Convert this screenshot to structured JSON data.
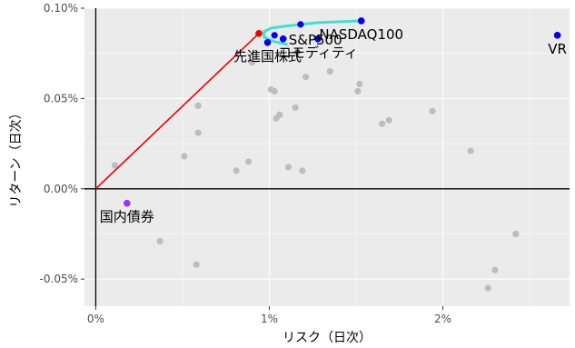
{
  "chart_data": {
    "type": "scatter",
    "xlabel": "リスク（日次）",
    "ylabel": "リターン（日次）",
    "xlim": [
      -0.00065,
      0.0273
    ],
    "ylim": [
      -0.00065,
      0.001
    ],
    "x_ticks": [
      {
        "value": 0.0,
        "label": "0%"
      },
      {
        "value": 0.01,
        "label": "1%"
      },
      {
        "value": 0.02,
        "label": "2%"
      }
    ],
    "y_ticks": [
      {
        "value": -0.0005,
        "label": "-0.05%"
      },
      {
        "value": 0.0,
        "label": "0.00%"
      },
      {
        "value": 0.0005,
        "label": "0.05%"
      },
      {
        "value": 0.001,
        "label": "0.10%"
      }
    ],
    "grid": true,
    "legend": "none",
    "colors": {
      "panel": "#ebebeb",
      "grid": "#ffffff",
      "background_points": "#bdbdbd",
      "highlight_points": "#0000ee",
      "bond_point": "#9b30ff",
      "tangent_point": "#ee0000",
      "tangent_line": "#ee0000",
      "frontier": "#40e0d0",
      "axes": "#000000"
    },
    "background_points": [
      [
        0.0011,
        0.00013
      ],
      [
        0.0037,
        -0.00029
      ],
      [
        0.0051,
        0.00018
      ],
      [
        0.0058,
        -0.00042
      ],
      [
        0.0059,
        0.00031
      ],
      [
        0.0059,
        0.00046
      ],
      [
        0.0081,
        0.0001
      ],
      [
        0.0088,
        0.00015
      ],
      [
        0.009,
        0.0007
      ],
      [
        0.0101,
        0.00055
      ],
      [
        0.0103,
        0.00054
      ],
      [
        0.0104,
        0.00039
      ],
      [
        0.0106,
        0.00041
      ],
      [
        0.0111,
        0.00012
      ],
      [
        0.0115,
        0.00045
      ],
      [
        0.0119,
        0.0001
      ],
      [
        0.0121,
        0.00062
      ],
      [
        0.0135,
        0.00065
      ],
      [
        0.0151,
        0.00054
      ],
      [
        0.0152,
        0.00058
      ],
      [
        0.0165,
        0.00036
      ],
      [
        0.0169,
        0.00038
      ],
      [
        0.0194,
        0.00043
      ],
      [
        0.0216,
        0.00021
      ],
      [
        0.0226,
        -0.00055
      ],
      [
        0.023,
        -0.00045
      ],
      [
        0.0242,
        -0.00025
      ]
    ],
    "frontier": [
      [
        0.0097,
        0.00084
      ],
      [
        0.0097,
        0.00087
      ],
      [
        0.0101,
        0.00089
      ],
      [
        0.0109,
        0.0009
      ],
      [
        0.0118,
        0.00091
      ],
      [
        0.0128,
        0.00092
      ],
      [
        0.0141,
        0.000925
      ],
      [
        0.0153,
        0.00093
      ]
    ],
    "frontier_return_branch": [
      [
        0.0097,
        0.00084
      ],
      [
        0.0103,
        0.000815
      ],
      [
        0.011,
        0.0008
      ]
    ],
    "tangent_line": [
      [
        0.0,
        0.0
      ],
      [
        0.0094,
        0.00086
      ]
    ],
    "labeled_points": [
      {
        "name": "国内債券",
        "x": 0.0018,
        "y": -8e-05,
        "color": "#9b30ff",
        "label_side": "below"
      },
      {
        "name": "先進国株式",
        "x": 0.0099,
        "y": 0.00081,
        "color": "#0000ee",
        "label_side": "below"
      },
      {
        "name": "S&P500",
        "x": 0.0108,
        "y": 0.00083,
        "color": "#0000ee",
        "label_side": "right"
      },
      {
        "name": "NASDAQ100",
        "x": 0.0153,
        "y": 0.00093,
        "color": "#0000ee",
        "label_side": "below"
      },
      {
        "name": "コモディティ",
        "x": 0.0128,
        "y": 0.00083,
        "color": "#0000ee",
        "label_side": "below"
      },
      {
        "name": "VR",
        "x": 0.0266,
        "y": 0.00085,
        "color": "#0000ee",
        "label_side": "below"
      }
    ],
    "extra_highlight_points": [
      [
        0.0118,
        0.00091
      ],
      [
        0.0103,
        0.00085
      ]
    ],
    "tangent_point": {
      "x": 0.0094,
      "y": 0.00086
    }
  }
}
